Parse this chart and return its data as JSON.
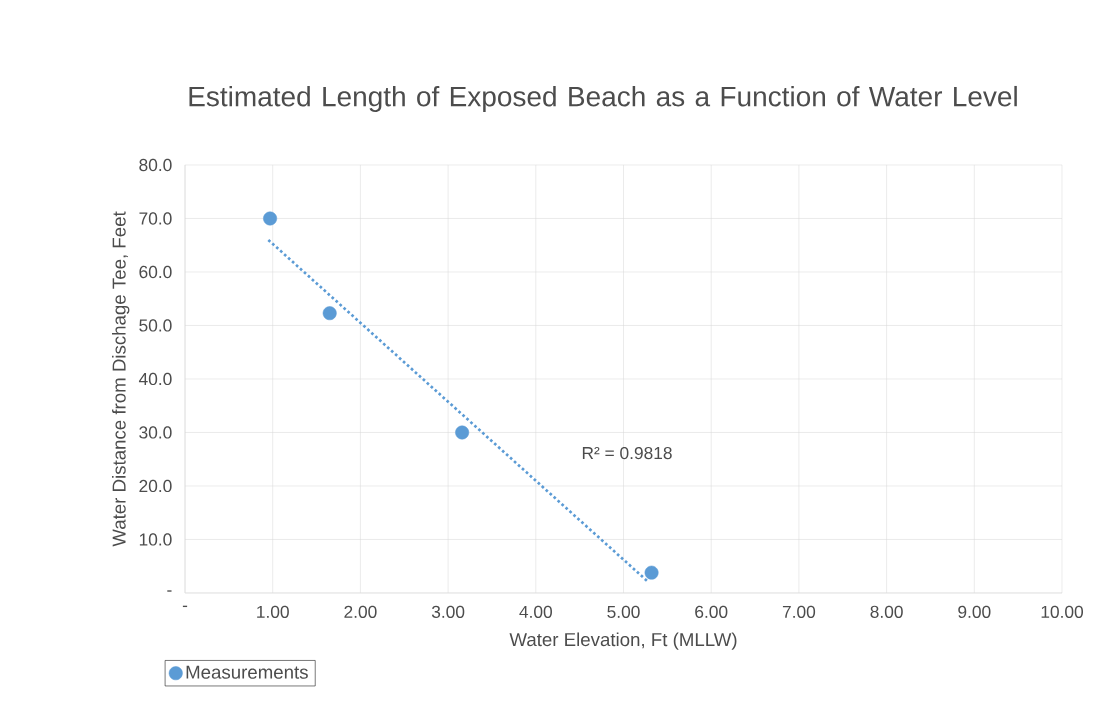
{
  "chart_data": {
    "type": "scatter",
    "title": "Estimated Length of Exposed Beach as a Function of Water Level",
    "xlabel": "Water Elevation, Ft (MLLW)",
    "ylabel": "Water Distance from Dischage Tee, Feet",
    "series": [
      {
        "name": "Measurements",
        "color": "#5b9bd5",
        "marker": "circle",
        "x": [
          0.97,
          1.65,
          3.16,
          5.32
        ],
        "values": [
          70.0,
          52.3,
          30.0,
          3.8
        ]
      },
      {
        "type": "line",
        "color": "#5b9bd5",
        "line_style": "dotted",
        "marker": "none",
        "x": [
          0.95,
          5.28
        ],
        "values": [
          66.0,
          2.1
        ]
      }
    ],
    "annotations": [
      "R² = 0.9818"
    ],
    "xlim": [
      0,
      10
    ],
    "ylim": [
      0,
      80
    ],
    "xticks": [
      {
        "value": 0,
        "label": "-"
      },
      {
        "value": 1,
        "label": "1.00"
      },
      {
        "value": 2,
        "label": "2.00"
      },
      {
        "value": 3,
        "label": "3.00"
      },
      {
        "value": 4,
        "label": "4.00"
      },
      {
        "value": 5,
        "label": "5.00"
      },
      {
        "value": 6,
        "label": "6.00"
      },
      {
        "value": 7,
        "label": "7.00"
      },
      {
        "value": 8,
        "label": "8.00"
      },
      {
        "value": 9,
        "label": "9.00"
      },
      {
        "value": 10,
        "label": "10.00"
      }
    ],
    "yticks": [
      {
        "value": 0,
        "label": "-"
      },
      {
        "value": 10,
        "label": "10.0"
      },
      {
        "value": 20,
        "label": "20.0"
      },
      {
        "value": 30,
        "label": "30.0"
      },
      {
        "value": 40,
        "label": "40.0"
      },
      {
        "value": 50,
        "label": "50.0"
      },
      {
        "value": 60,
        "label": "60.0"
      },
      {
        "value": 70,
        "label": "70.0"
      },
      {
        "value": 80,
        "label": "80.0"
      }
    ],
    "grid": true,
    "legend": "bottom left"
  }
}
